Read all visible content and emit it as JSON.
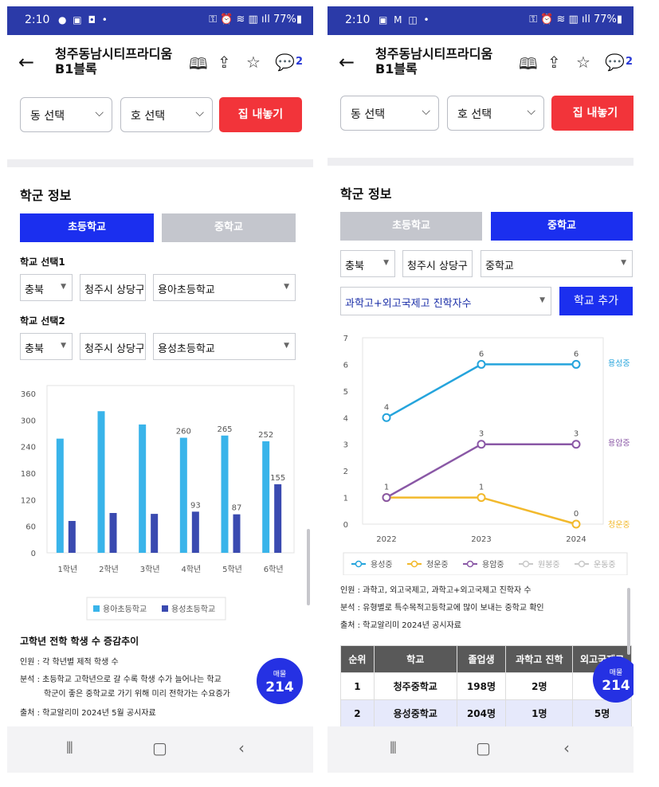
{
  "left": {
    "status": {
      "time": "2:10",
      "icons": "● ▣ ◘ •",
      "right": "⚿ ⏰ ≋ ▥ ıll 77%▮"
    },
    "appbar": {
      "title": "청주동남시티프라디움 B1블록",
      "comment_count": "2"
    },
    "selectors": {
      "dong": "동 선택",
      "ho": "호 선택",
      "sell_button": "집 내놓기"
    },
    "school": {
      "section_title": "학군 정보",
      "tabs": [
        "초등학교",
        "중학교"
      ],
      "select1": {
        "label": "학교 선택1",
        "region": "충북",
        "city": "청주시 상당구",
        "school": "용아초등학교"
      },
      "select2": {
        "label": "학교 선택2",
        "region": "충북",
        "city": "청주시 상당구",
        "school": "용성초등학교"
      }
    },
    "chart_data": {
      "type": "bar",
      "categories": [
        "1학년",
        "2학년",
        "3학년",
        "4학년",
        "5학년",
        "6학년"
      ],
      "ylim": [
        0,
        360
      ],
      "yticks": [
        "360",
        "300",
        "240",
        "180",
        "120",
        "60",
        "0"
      ],
      "series": [
        {
          "name": "용아초등학교",
          "color": "#39b4ea",
          "values": [
            258,
            320,
            290,
            260,
            265,
            252
          ]
        },
        {
          "name": "용성초등학교",
          "color": "#3a4ab0",
          "values": [
            72,
            90,
            88,
            93,
            87,
            155
          ]
        }
      ],
      "labels": [
        {
          "series": 0,
          "index": 3,
          "text": "260"
        },
        {
          "series": 0,
          "index": 4,
          "text": "265"
        },
        {
          "series": 0,
          "index": 5,
          "text": "252"
        },
        {
          "series": 1,
          "index": 3,
          "text": "93"
        },
        {
          "series": 1,
          "index": 4,
          "text": "87"
        },
        {
          "series": 1,
          "index": 5,
          "text": "155"
        }
      ]
    },
    "info": {
      "title": "고학년 전학 학생 수 증감추이",
      "line1": "인원 : 각 학년별 제적 학생 수",
      "line2a": "분석 : 초등학교 고학년으로 갈 수록 학생 수가 늘어나는 학교",
      "line2b": "학군이 좋은 중학교로 가기 위해 미리 전학가는 수요증가",
      "line3": "출처 : 학교알리미 2024년 5월 공시자료"
    },
    "fab": {
      "label": "매물",
      "count": "214"
    }
  },
  "right": {
    "status": {
      "time": "2:10",
      "icons": "▣ M ◫ •",
      "right": "⚿ ⏰ ≋ ▥ ıll 77%▮"
    },
    "appbar": {
      "title": "청주동남시티프라디움 B1블록",
      "comment_count": "2"
    },
    "selectors": {
      "dong": "동 선택",
      "ho": "호 선택",
      "sell_button": "집 내놓기"
    },
    "school": {
      "section_title": "학군 정보",
      "tabs": [
        "초등학교",
        "중학교"
      ],
      "region": "충북",
      "city": "청주시 상당구",
      "level": "중학교",
      "metric": "과학고+외고국제고 진학자수",
      "add_button": "학교 추가"
    },
    "chart_data": {
      "type": "line",
      "x": [
        "2022",
        "2023",
        "2024"
      ],
      "ylim": [
        0,
        7
      ],
      "yticks": [
        "7",
        "6",
        "5",
        "4",
        "3",
        "2",
        "1",
        "0"
      ],
      "series": [
        {
          "name": "용성중",
          "color": "#25a4dc",
          "values": [
            4,
            6,
            6
          ]
        },
        {
          "name": "청운중",
          "color": "#f2b92c",
          "values": [
            1,
            1,
            0
          ]
        },
        {
          "name": "용암중",
          "color": "#8a58a6",
          "values": [
            1,
            3,
            3
          ]
        }
      ],
      "value_labels": [
        [
          "4",
          "6",
          "6"
        ],
        [
          "",
          "1",
          "0"
        ],
        [
          "1",
          "3",
          "3"
        ]
      ],
      "legend": [
        {
          "name": "용성중",
          "color": "#25a4dc"
        },
        {
          "name": "청운중",
          "color": "#f2b92c"
        },
        {
          "name": "용암중",
          "color": "#8a58a6"
        },
        {
          "name": "원봉중",
          "color": "#c9c9c9"
        },
        {
          "name": "운동중",
          "color": "#c9c9c9"
        }
      ]
    },
    "info": {
      "line1": "인원 : 과학고, 외고국제고, 과학고+외고국제고 진학자 수",
      "line2": "분석 : 유형별로 특수목적고등학교에 많이 보내는 중학교 확인",
      "line3": "출처 : 학교알리미 2024년 공시자료"
    },
    "table": {
      "headers": [
        "순위",
        "학교",
        "졸업생",
        "과학고 진학",
        "외고국제고"
      ],
      "rows": [
        [
          "1",
          "청주중학교",
          "198명",
          "2명",
          ""
        ],
        [
          "2",
          "용성중학교",
          "204명",
          "1명",
          "5명"
        ]
      ]
    },
    "fab": {
      "label": "매물",
      "count": "214"
    }
  }
}
